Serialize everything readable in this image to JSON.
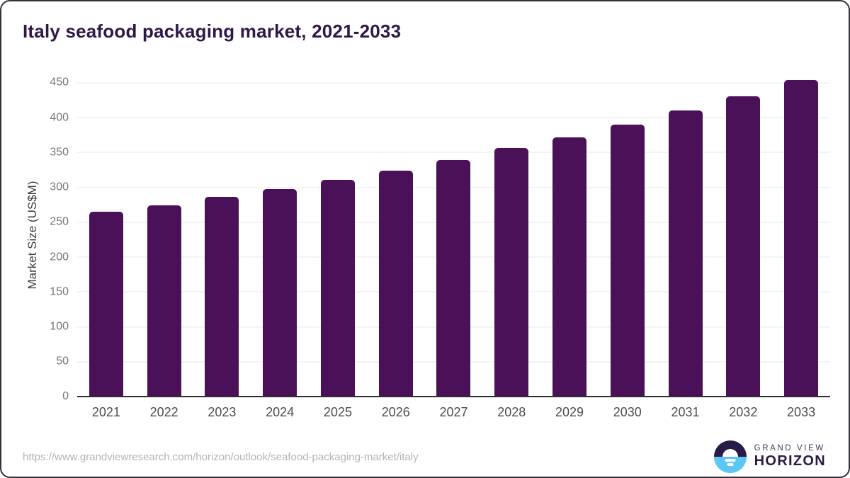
{
  "title": "Italy seafood packaging market, 2021-2033",
  "chart_data": {
    "type": "bar",
    "title": "Italy seafood packaging market, 2021-2033",
    "categories": [
      "2021",
      "2022",
      "2023",
      "2024",
      "2025",
      "2026",
      "2027",
      "2028",
      "2029",
      "2030",
      "2031",
      "2032",
      "2033"
    ],
    "values": [
      265,
      274,
      286,
      298,
      311,
      324,
      339,
      356,
      372,
      390,
      410,
      431,
      454
    ],
    "xlabel": "",
    "ylabel": "Market Size (US$M)",
    "ylim": [
      0,
      465
    ],
    "yticks": [
      0,
      50,
      100,
      150,
      200,
      250,
      300,
      350,
      400,
      450
    ],
    "grid": true,
    "legend": "none",
    "bar_color": "#4a1158"
  },
  "colors": {
    "bar": "#4a1158",
    "title": "#2f1847",
    "axis": "#2d2d2d",
    "grid": "#eaeaea",
    "ytick": "#767676",
    "xtick": "#4d4d4d",
    "url": "#b3b3b3",
    "logo-dark": "#2a1a47",
    "logo-blue": "#5bc7f5",
    "logo-text": "#2b1a44",
    "logo-subtext": "#453a5e"
  },
  "footer": {
    "source_url": "https://www.grandviewresearch.com/horizon/outlook/seafood-packaging-market/italy",
    "logo": {
      "top": "GRAND VIEW",
      "bottom": "HORIZON"
    }
  }
}
